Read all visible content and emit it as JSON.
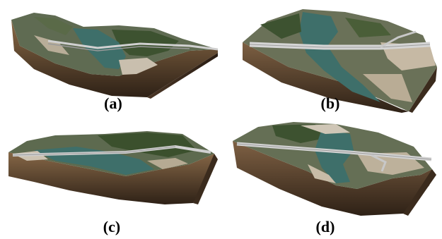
{
  "panels": [
    {
      "id": "a",
      "label": "(a)"
    },
    {
      "id": "b",
      "label": "(b)"
    },
    {
      "id": "c",
      "label": "(c)"
    },
    {
      "id": "d",
      "label": "(d)"
    }
  ],
  "colors": {
    "soil_dark": "#3a2a1c",
    "soil_light": "#8a6a47",
    "water": "#3e6f6a",
    "forest": "#3d5230",
    "sand": "#c9bfae",
    "road": "#b9b9b9"
  }
}
